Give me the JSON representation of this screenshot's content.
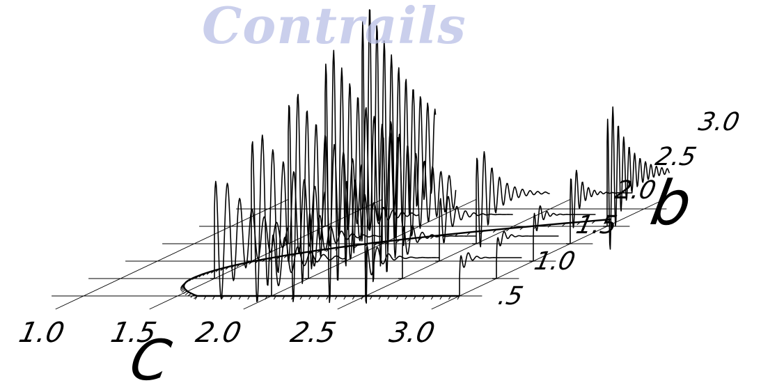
{
  "watermark": "Contrails",
  "axes": {
    "c": {
      "name": "C",
      "ticks": [
        "1.0",
        "1.5",
        "2.0",
        "2.5",
        "3.0"
      ]
    },
    "b": {
      "name": "b",
      "ticks": [
        ".5",
        "1.0",
        "1.5",
        "2.0",
        "2.5",
        "3.0"
      ]
    }
  },
  "c_values": [
    1.0,
    1.5,
    2.0,
    2.5,
    3.0
  ],
  "b_values": [
    0.5,
    1.0,
    1.5,
    2.0,
    2.5,
    3.0
  ],
  "style": {
    "ink": "#000000",
    "watermark_color": "#b9bfe6"
  }
}
